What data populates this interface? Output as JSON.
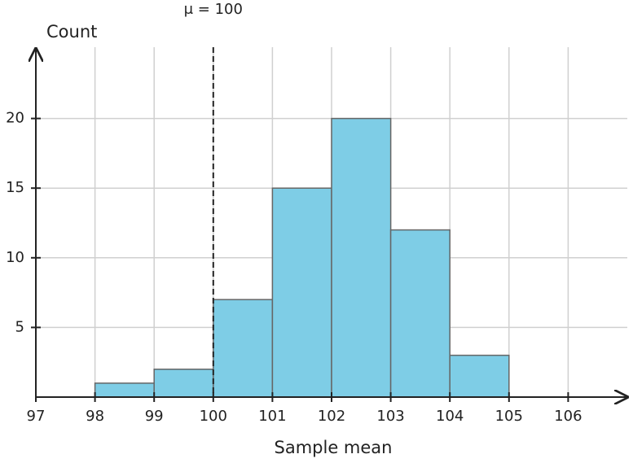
{
  "chart_data": {
    "type": "histogram",
    "bins": [
      98,
      99,
      100,
      101,
      102,
      103,
      104,
      105
    ],
    "counts": [
      1,
      2,
      7,
      15,
      20,
      12,
      3
    ],
    "color": "#7ecde6",
    "xlabel": "Sample mean",
    "ylabel": "Count",
    "xlim": [
      97,
      107
    ],
    "xticks": [
      97,
      98,
      99,
      100,
      101,
      102,
      103,
      104,
      105,
      106
    ],
    "ylim": [
      0,
      25
    ],
    "yticks": [
      5,
      10,
      15,
      20
    ],
    "grid": true,
    "annotation": {
      "text": "μ = 100",
      "x": 100
    }
  }
}
